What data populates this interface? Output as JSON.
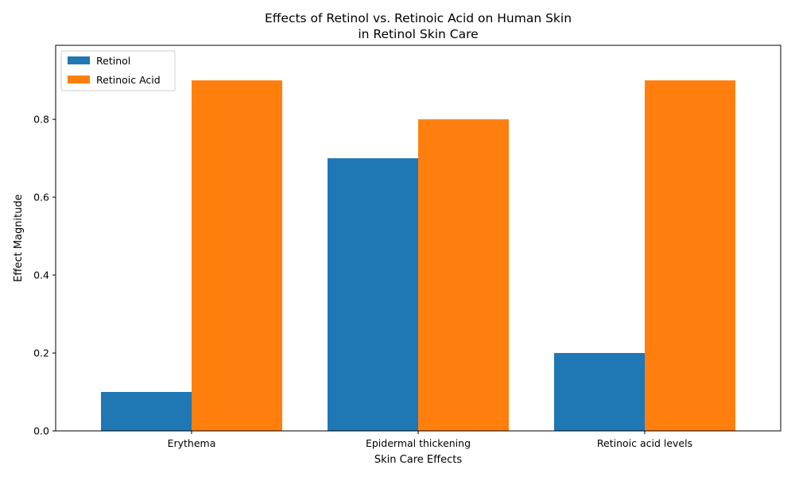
{
  "chart_data": {
    "type": "bar",
    "title_lines": [
      "Effects of Retinol vs. Retinoic Acid on Human Skin",
      "in Retinol Skin Care"
    ],
    "xlabel": "Skin Care Effects",
    "ylabel": "Effect Magnitude",
    "categories": [
      "Erythema",
      "Epidermal thickening",
      "Retinoic acid levels"
    ],
    "series": [
      {
        "name": "Retinol",
        "color": "#1f77b4",
        "values": [
          0.1,
          0.7,
          0.2
        ]
      },
      {
        "name": "Retinoic Acid",
        "color": "#ff7f0e",
        "values": [
          0.9,
          0.8,
          0.9
        ]
      }
    ],
    "ylim": [
      0,
      0.99
    ],
    "yticks": [
      0.0,
      0.2,
      0.4,
      0.6,
      0.8
    ],
    "ytick_labels": [
      "0.0",
      "0.2",
      "0.4",
      "0.6",
      "0.8"
    ],
    "legend": "top-left",
    "grid": false
  }
}
